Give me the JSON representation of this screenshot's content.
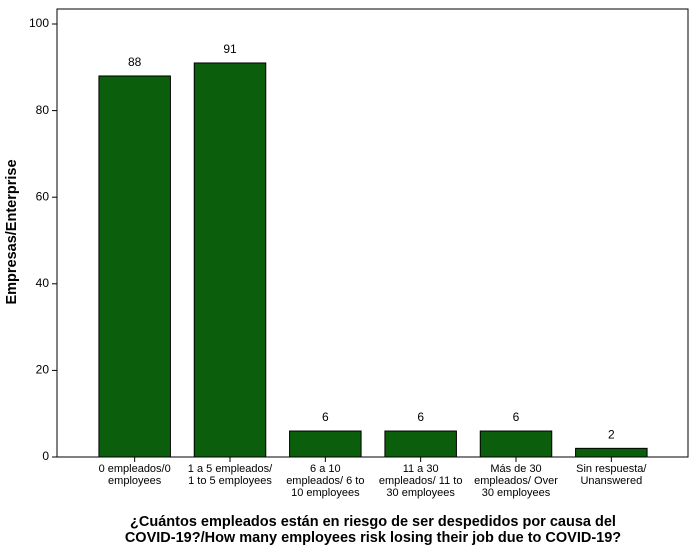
{
  "chart_data": {
    "type": "bar",
    "title": "¿Cuántos empleados están en riesgo de ser despedidos por causa del\nCOVID-19?/How many employees risk losing their job due to COVID-19?",
    "y_label": "Empresas/Enterprise",
    "categories": [
      "0 empleados/0\nemployees",
      "1 a 5 empleados/\n1 to 5 employees",
      "6 a 10\nempleados/ 6 to\n10 employees",
      "11 a 30\nempleados/ 11 to\n30 employees",
      "Más de 30\nempleados/ Over\n30 employees",
      "Sin respuesta/\nUnanswered"
    ],
    "values": [
      88,
      91,
      6,
      6,
      6,
      2
    ],
    "color": "#0b5e0b",
    "ylim": [
      0,
      100
    ],
    "yticks": [
      0,
      20,
      40,
      60,
      80,
      100
    ],
    "grid": false
  }
}
